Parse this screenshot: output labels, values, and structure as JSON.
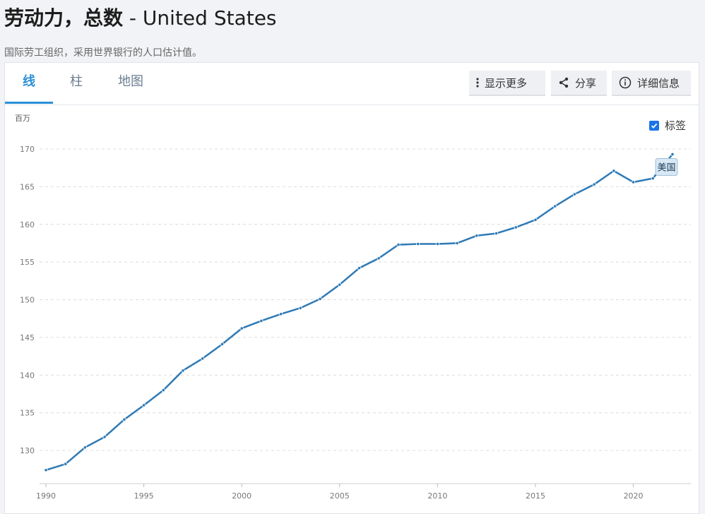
{
  "page": {
    "title_main": "劳动力，总数",
    "title_country": " - United States",
    "source_note": "国际劳工组织，采用世界银行的人口估计值。"
  },
  "tabs": [
    {
      "label": "线",
      "active": true
    },
    {
      "label": "柱",
      "active": false
    },
    {
      "label": "地图",
      "active": false
    }
  ],
  "toolbar": {
    "more_label": "显示更多",
    "share_label": "分享",
    "info_label": "详细信息",
    "more_icon": "vertical-dots-icon",
    "share_icon": "share-icon",
    "info_icon": "info-circle-icon"
  },
  "legend_toggle": {
    "label": "标签",
    "checked": true
  },
  "colors": {
    "line": "#2e7ab6",
    "accent": "#2a8fd6",
    "tooltip_bg": "#d8e8f5"
  },
  "chart_data": {
    "type": "line",
    "ylabel": "百万",
    "ylim": [
      127,
      171
    ],
    "xlim": [
      1990,
      2022
    ],
    "yticks": [
      130,
      135,
      140,
      145,
      150,
      155,
      160,
      165,
      170
    ],
    "xticks": [
      1990,
      1995,
      2000,
      2005,
      2010,
      2015,
      2020
    ],
    "grid": true,
    "series": [
      {
        "name": "美国",
        "x": [
          1990,
          1991,
          1992,
          1993,
          1994,
          1995,
          1996,
          1997,
          1998,
          1999,
          2000,
          2001,
          2002,
          2003,
          2004,
          2005,
          2006,
          2007,
          2008,
          2009,
          2010,
          2011,
          2012,
          2013,
          2014,
          2015,
          2016,
          2017,
          2018,
          2019,
          2020,
          2021,
          2022
        ],
        "values": [
          127.4,
          128.2,
          130.4,
          131.8,
          134.1,
          136.0,
          138.0,
          140.6,
          142.2,
          144.1,
          146.2,
          147.2,
          148.1,
          148.9,
          150.1,
          152.0,
          154.2,
          155.5,
          157.3,
          157.4,
          157.4,
          157.5,
          158.5,
          158.8,
          159.6,
          160.6,
          162.4,
          164.0,
          165.3,
          167.1,
          165.6,
          166.1,
          169.3
        ]
      }
    ]
  }
}
